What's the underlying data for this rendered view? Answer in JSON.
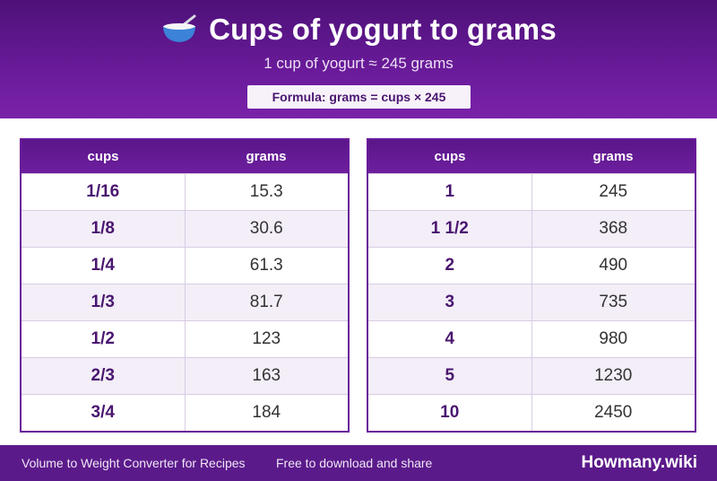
{
  "header": {
    "icon": "bowl-with-spoon-icon",
    "title": "Cups of yogurt to grams",
    "subtitle": "1 cup of yogurt ≈ 245 grams",
    "formula": "Formula: grams = cups × 245"
  },
  "tables": [
    {
      "col_cups": "cups",
      "col_grams": "grams",
      "rows": [
        {
          "cups": "1/16",
          "grams": "15.3"
        },
        {
          "cups": "1/8",
          "grams": "30.6"
        },
        {
          "cups": "1/4",
          "grams": "61.3"
        },
        {
          "cups": "1/3",
          "grams": "81.7"
        },
        {
          "cups": "1/2",
          "grams": "123"
        },
        {
          "cups": "2/3",
          "grams": "163"
        },
        {
          "cups": "3/4",
          "grams": "184"
        }
      ]
    },
    {
      "col_cups": "cups",
      "col_grams": "grams",
      "rows": [
        {
          "cups": "1",
          "grams": "245"
        },
        {
          "cups": "1 1/2",
          "grams": "368"
        },
        {
          "cups": "2",
          "grams": "490"
        },
        {
          "cups": "3",
          "grams": "735"
        },
        {
          "cups": "4",
          "grams": "980"
        },
        {
          "cups": "5",
          "grams": "1230"
        },
        {
          "cups": "10",
          "grams": "2450"
        }
      ]
    }
  ],
  "footer": {
    "left": "Volume to Weight Converter for Recipes",
    "mid": "Free to download and share",
    "brand": "Howmany.wiki"
  },
  "colors": {
    "accent": "#6a1b9a",
    "row_alt": "#f3eef8"
  }
}
